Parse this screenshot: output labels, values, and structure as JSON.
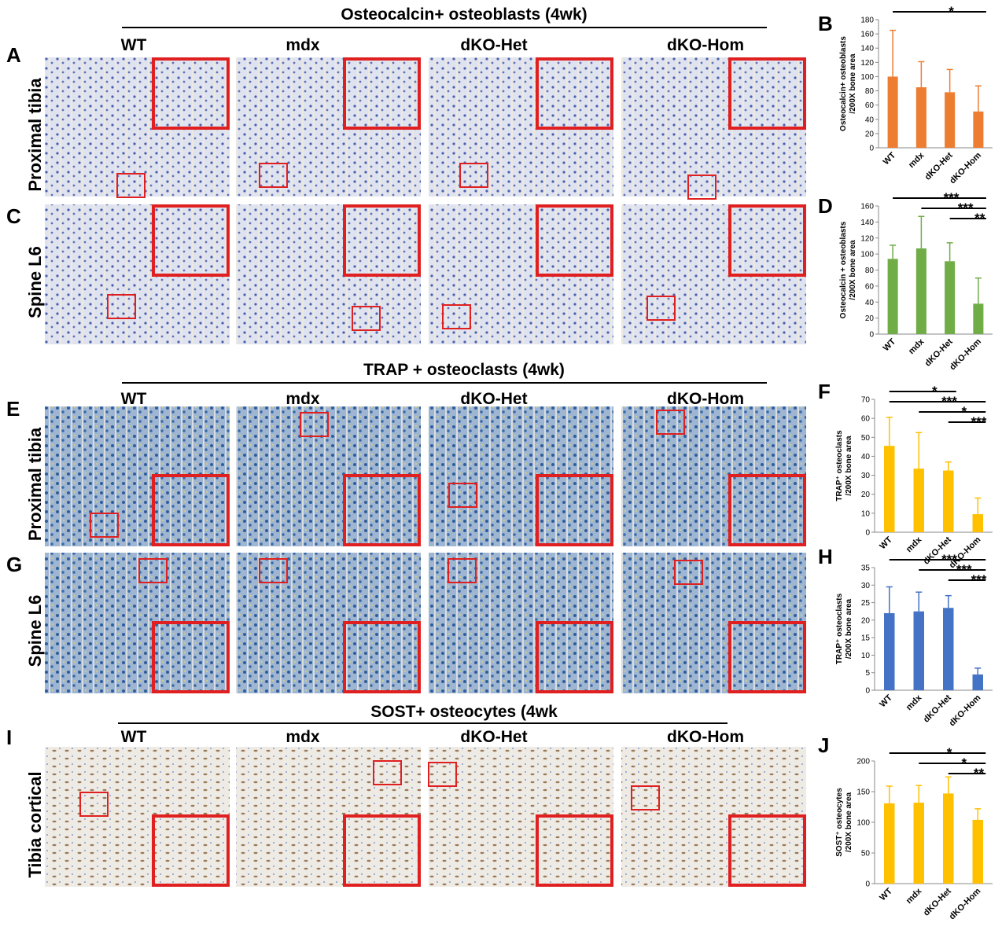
{
  "figure": {
    "sections": [
      {
        "title": "Osteocalcin+ osteoblasts (4wk)",
        "columns": [
          "WT",
          "mdx",
          "dKO-Het",
          "dKO-Hom"
        ],
        "letters": [
          "A",
          "C"
        ],
        "rows": [
          "Proximal tibia",
          "Spine L6"
        ]
      },
      {
        "title": "TRAP + osteoclasts (4wk)",
        "columns": [
          "WT",
          "mdx",
          "dKO-Het",
          "dKO-Hom"
        ],
        "letters": [
          "E",
          "G"
        ],
        "rows": [
          "Proximal tibia",
          "Spine L6"
        ]
      },
      {
        "title": "SOST+ osteocytes (4wk",
        "columns": [
          "WT",
          "mdx",
          "dKO-Het",
          "dKO-Hom"
        ],
        "letters": [
          "I"
        ],
        "rows": [
          "Tibia cortical"
        ]
      }
    ]
  },
  "chart_data": [
    {
      "type": "bar",
      "panel": "B",
      "ylabel": [
        "Osteocalcin+ osteoblasts",
        "/200X bone area"
      ],
      "categories": [
        "WT",
        "mdx",
        "dKO-Het",
        "dKO-Hom"
      ],
      "values": [
        100,
        85,
        78,
        51
      ],
      "errors": [
        65,
        36,
        32,
        36
      ],
      "color": "#ed7d31",
      "ylim": [
        0,
        180
      ],
      "yticks": [
        0,
        20,
        40,
        60,
        80,
        100,
        120,
        140,
        160,
        180
      ],
      "annotations": [
        "*"
      ]
    },
    {
      "type": "bar",
      "panel": "D",
      "ylabel": [
        "Osteocalcin + osteoblasts",
        "/200X bone area"
      ],
      "categories": [
        "WT",
        "mdx",
        "dKO-Het",
        "dKO-Hom"
      ],
      "values": [
        94,
        107,
        91,
        38
      ],
      "errors": [
        17,
        40,
        23,
        32
      ],
      "color": "#70ad47",
      "ylim": [
        0,
        160
      ],
      "yticks": [
        0,
        20,
        40,
        60,
        80,
        100,
        120,
        140,
        160
      ],
      "annotations": [
        "***",
        "***",
        "**"
      ]
    },
    {
      "type": "bar",
      "panel": "F",
      "ylabel": [
        "TRAP⁺ osteoclasts",
        "/200X bone area"
      ],
      "categories": [
        "WT",
        "mdx",
        "dKO-Het",
        "dKO-Hom"
      ],
      "values": [
        45.5,
        33.5,
        32.5,
        9.5
      ],
      "errors": [
        15,
        19,
        4.5,
        8.5
      ],
      "color": "#ffc000",
      "ylim": [
        0,
        70
      ],
      "yticks": [
        0,
        10,
        20,
        30,
        40,
        50,
        60,
        70
      ],
      "annotations": [
        "*",
        "***",
        "*",
        "***"
      ]
    },
    {
      "type": "bar",
      "panel": "H",
      "ylabel": [
        "TRAP⁺ osteoclasts",
        "/200X  bone area"
      ],
      "categories": [
        "WT",
        "mdx",
        "dKO-Het",
        "dKO-Hom"
      ],
      "values": [
        22,
        22.5,
        23.5,
        4.5
      ],
      "errors": [
        7.5,
        5.5,
        3.5,
        1.8
      ],
      "color": "#4472c4",
      "ylim": [
        0,
        35
      ],
      "yticks": [
        0,
        5,
        10,
        15,
        20,
        25,
        30,
        35
      ],
      "annotations": [
        "***",
        "***",
        "***"
      ]
    },
    {
      "type": "bar",
      "panel": "J",
      "ylabel": [
        "SOST⁺ osteocytes",
        "/200X bone area"
      ],
      "categories": [
        "WT",
        "mdx",
        "dKO-Het",
        "dKO-Hom"
      ],
      "values": [
        131,
        132,
        147,
        104
      ],
      "errors": [
        28,
        28,
        27,
        18
      ],
      "color": "#ffc000",
      "ylim": [
        0,
        200
      ],
      "yticks": [
        0,
        50,
        100,
        150,
        200
      ],
      "annotations": [
        "*",
        "*",
        "**"
      ]
    }
  ]
}
